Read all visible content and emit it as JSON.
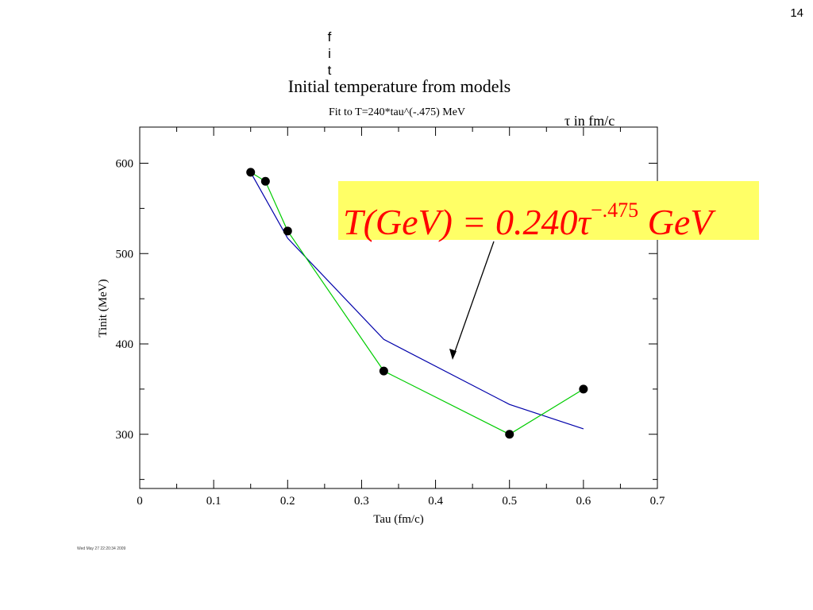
{
  "slide_number": "14",
  "overlay_vertical_text": [
    "f",
    "i",
    "t"
  ],
  "tau_unit_note": "τ in fm/c",
  "formula": {
    "main": "T(GeV) = 0.240τ",
    "exponent": "−.475",
    "unit": " GeV",
    "background_color": "#ffff66",
    "text_color": "#ff0000"
  },
  "footer_timestamp": "Wed May 27 22:20:34 2009",
  "chart_data": {
    "type": "line",
    "title": "Initial temperature from models",
    "subtitle": "Fit to T=240*tau^(-.475) MeV",
    "xlabel": "Tau (fm/c)",
    "ylabel": "Tinit (MeV)",
    "xlim": [
      0,
      0.7
    ],
    "ylim": [
      240,
      640
    ],
    "xticks": [
      0,
      0.1,
      0.2,
      0.3,
      0.4,
      0.5,
      0.6,
      0.7
    ],
    "xtick_labels": [
      "0",
      "0.1",
      "0.2",
      "0.3",
      "0.4",
      "0.5",
      "0.6",
      "0.7"
    ],
    "yticks": [
      300,
      400,
      500,
      600
    ],
    "ytick_labels": [
      "300",
      "400",
      "500",
      "600"
    ],
    "grid": false,
    "series": [
      {
        "name": "",
        "color": "#00cc00",
        "markers": true,
        "x": [
          0.15,
          0.17,
          0.2,
          0.33,
          0.5,
          0.6
        ],
        "y": [
          590,
          580,
          525,
          370,
          300,
          350
        ]
      },
      {
        "name": "",
        "color": "#0000aa",
        "markers": false,
        "x": [
          0.15,
          0.2,
          0.33,
          0.5,
          0.6
        ],
        "y": [
          590,
          517,
          405,
          333,
          306
        ]
      }
    ]
  }
}
